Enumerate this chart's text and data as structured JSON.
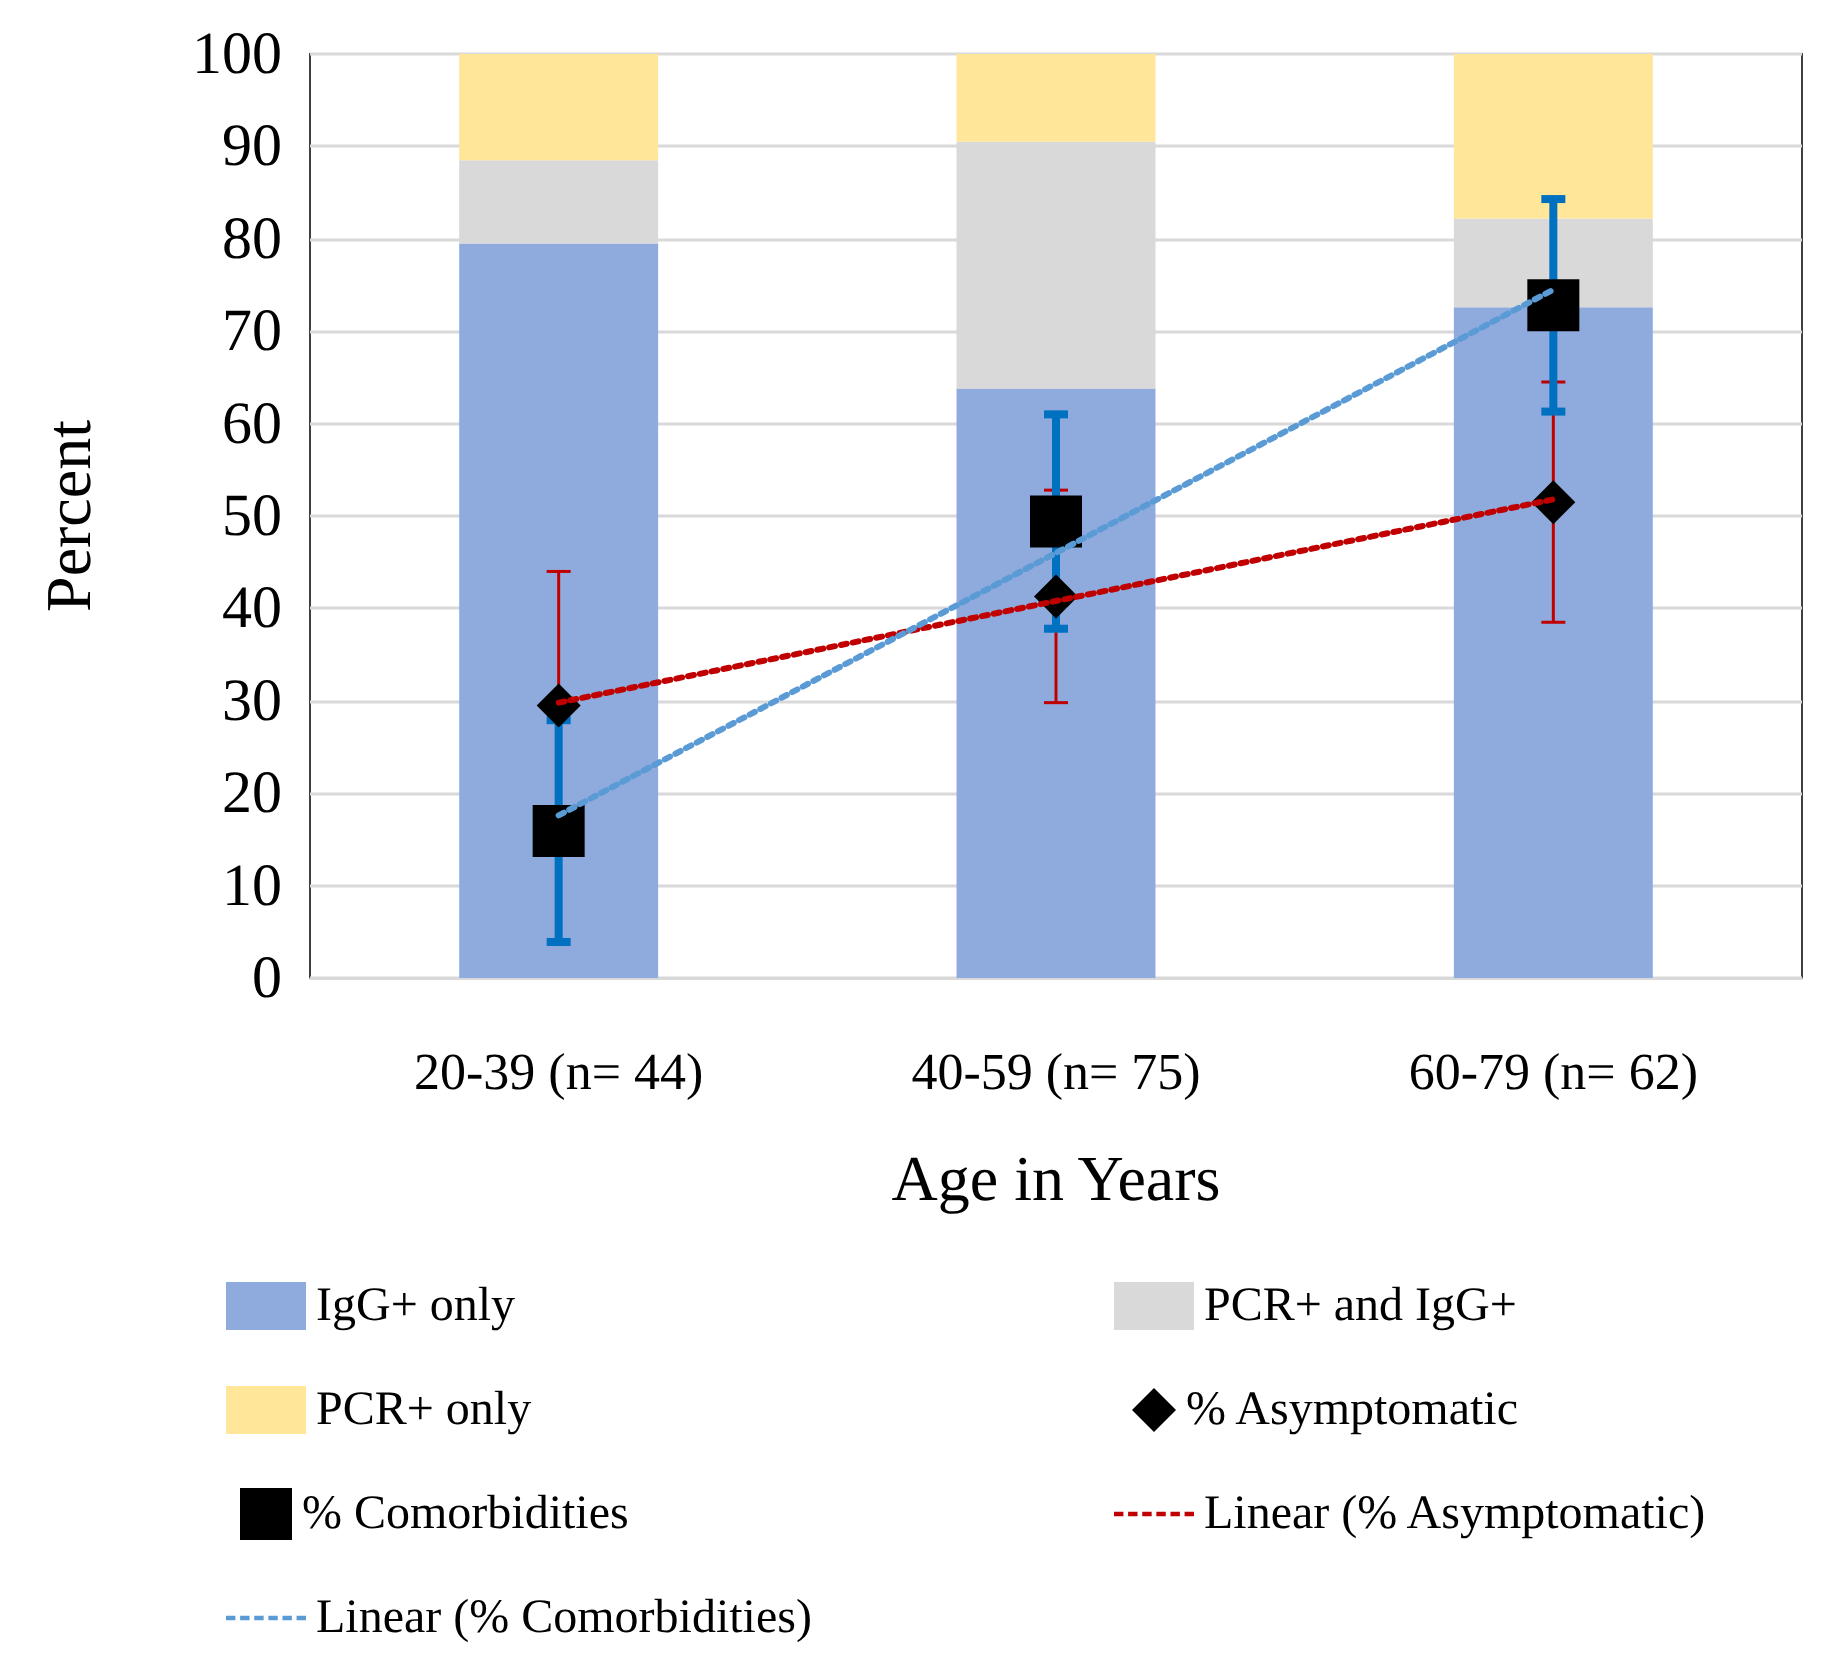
{
  "chart_data": {
    "type": "bar",
    "stacked": true,
    "xlabel": "Age in Years",
    "ylabel": "Percent",
    "categories": [
      "20-39 (n= 44)",
      "40-59 (n= 75)",
      "60-79 (n= 62)"
    ],
    "series": [
      {
        "name": "IgG+ only",
        "color": "#8faadc",
        "values": [
          79.5,
          63.8,
          72.6
        ]
      },
      {
        "name": "PCR+ and IgG+",
        "color": "#d9d9d9",
        "values": [
          9,
          26.7,
          9.6
        ]
      },
      {
        "name": "PCR+ only",
        "color": "#ffe699",
        "values": [
          11.5,
          9.5,
          17.8
        ]
      },
      {
        "name": "% Asymptomatic",
        "type": "scatter",
        "color": "#000000",
        "marker": "diamond",
        "x": [
          "20-39 (n= 44)",
          "40-59 (n= 75)",
          "60-79 (n= 62)"
        ],
        "values": [
          29.5,
          41.3,
          51.5
        ],
        "errors": [
          14.5,
          11.5,
          13
        ]
      },
      {
        "name": "% Comorbidities",
        "type": "scatter",
        "color": "#000000",
        "marker": "square",
        "x": [
          "20-39 (n= 44)",
          "40-59 (n= 75)",
          "60-79 (n= 62)"
        ],
        "values": [
          15.9,
          49.4,
          72.8
        ],
        "errors": [
          12,
          11.6,
          11.5
        ]
      },
      {
        "name": "Linear (% Asymptomatic)",
        "type": "line",
        "color": "#c00000",
        "line_style": "dotted",
        "marker": "none",
        "x": [
          "20-39 (n= 44)",
          "40-59 (n= 75)",
          "60-79 (n= 62)"
        ],
        "values": [
          29.8,
          40.8,
          51.8
        ]
      },
      {
        "name": "Linear (% Comorbidities)",
        "type": "line",
        "color": "#5b9bd5",
        "line_style": "dotted",
        "marker": "none",
        "x": [
          "20-39 (n= 44)",
          "40-59 (n= 75)",
          "60-79 (n= 62)"
        ],
        "values": [
          17.6,
          46.0,
          74.5
        ]
      }
    ],
    "ylim": [
      0,
      100
    ],
    "yticks": [
      0,
      10,
      20,
      30,
      40,
      50,
      60,
      70,
      80,
      90,
      100
    ],
    "grid": "y",
    "legend": "bottom"
  }
}
